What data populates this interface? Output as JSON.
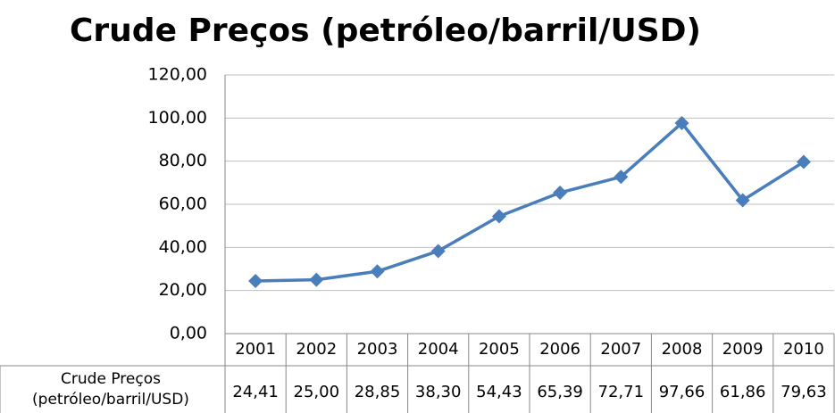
{
  "chart_data": {
    "type": "line",
    "title": "Crude Preços (petróleo/barril/USD)",
    "categories": [
      "2001",
      "2002",
      "2003",
      "2004",
      "2005",
      "2006",
      "2007",
      "2008",
      "2009",
      "2010"
    ],
    "series": [
      {
        "name": "Crude Preços (petróleo/barril/USD)",
        "color": "#4a7ebb",
        "values": [
          24.41,
          25.0,
          28.85,
          38.3,
          54.43,
          65.39,
          72.71,
          97.66,
          61.86,
          79.63
        ],
        "value_labels": [
          "24,41",
          "25,00",
          "28,85",
          "38,30",
          "54,43",
          "65,39",
          "72,71",
          "97,66",
          "61,86",
          "79,63"
        ]
      }
    ],
    "ylim": [
      0,
      120
    ],
    "yticks": [
      {
        "value": 0,
        "label": "0,00"
      },
      {
        "value": 20,
        "label": "20,00"
      },
      {
        "value": 40,
        "label": "40,00"
      },
      {
        "value": 60,
        "label": "60,00"
      },
      {
        "value": 80,
        "label": "80,00"
      },
      {
        "value": 100,
        "label": "100,00"
      },
      {
        "value": 120,
        "label": "120,00"
      }
    ],
    "grid": true
  }
}
